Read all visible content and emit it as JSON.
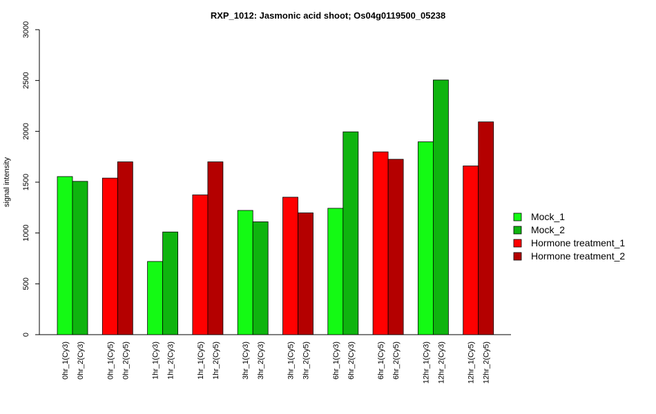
{
  "chart_data": {
    "type": "bar",
    "title": "RXP_1012: Jasmonic acid shoot; Os04g0119500_05238",
    "ylabel": "signal intensity",
    "ylim": [
      0,
      3000
    ],
    "yticks": [
      0,
      500,
      1000,
      1500,
      2000,
      2500,
      3000
    ],
    "groups": [
      {
        "bars": [
          {
            "label": "0hr_1(Cy3)",
            "value": 1555,
            "series": 0
          },
          {
            "label": "0hr_2(Cy3)",
            "value": 1508,
            "series": 1
          }
        ]
      },
      {
        "bars": [
          {
            "label": "0hr_1(Cy5)",
            "value": 1540,
            "series": 2
          },
          {
            "label": "0hr_2(Cy5)",
            "value": 1700,
            "series": 3
          }
        ]
      },
      {
        "bars": [
          {
            "label": "1hr_1(Cy3)",
            "value": 720,
            "series": 0
          },
          {
            "label": "1hr_2(Cy3)",
            "value": 1010,
            "series": 1
          }
        ]
      },
      {
        "bars": [
          {
            "label": "1hr_1(Cy5)",
            "value": 1375,
            "series": 2
          },
          {
            "label": "1hr_2(Cy5)",
            "value": 1700,
            "series": 3
          }
        ]
      },
      {
        "bars": [
          {
            "label": "3hr_1(Cy3)",
            "value": 1222,
            "series": 0
          },
          {
            "label": "3hr_2(Cy3)",
            "value": 1110,
            "series": 1
          }
        ]
      },
      {
        "bars": [
          {
            "label": "3hr_1(Cy5)",
            "value": 1352,
            "series": 2
          },
          {
            "label": "3hr_2(Cy5)",
            "value": 1198,
            "series": 3
          }
        ]
      },
      {
        "bars": [
          {
            "label": "6hr_1(Cy3)",
            "value": 1243,
            "series": 0
          },
          {
            "label": "6hr_2(Cy3)",
            "value": 1995,
            "series": 1
          }
        ]
      },
      {
        "bars": [
          {
            "label": "6hr_1(Cy5)",
            "value": 1798,
            "series": 2
          },
          {
            "label": "6hr_2(Cy5)",
            "value": 1725,
            "series": 3
          }
        ]
      },
      {
        "bars": [
          {
            "label": "12hr_1(Cy3)",
            "value": 1897,
            "series": 0
          },
          {
            "label": "12hr_2(Cy3)",
            "value": 2505,
            "series": 1
          }
        ]
      },
      {
        "bars": [
          {
            "label": "12hr_1(Cy5)",
            "value": 1660,
            "series": 2
          },
          {
            "label": "12hr_2(Cy5)",
            "value": 2093,
            "series": 3
          }
        ]
      }
    ],
    "legend": {
      "position": "right",
      "entries": [
        {
          "name": "Mock_1",
          "color": "#14FA14"
        },
        {
          "name": "Mock_2",
          "color": "#0FB40F"
        },
        {
          "name": "Hormone treatment_1",
          "color": "#FF0000"
        },
        {
          "name": "Hormone treatment_2",
          "color": "#B40000"
        }
      ]
    },
    "grid": false
  }
}
